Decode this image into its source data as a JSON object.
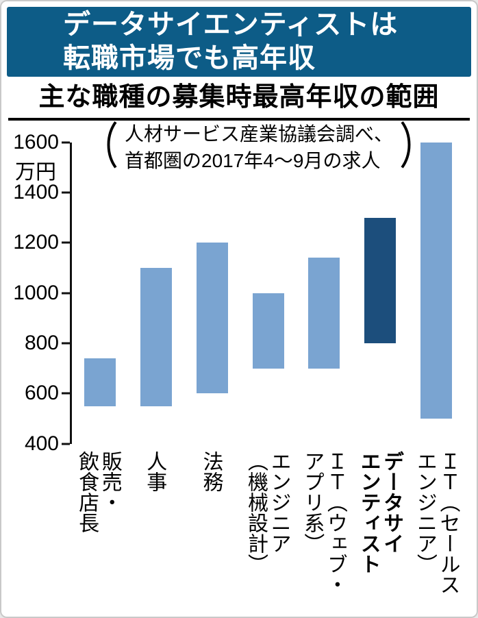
{
  "page": {
    "banner": {
      "line1": "データサイエンティストは",
      "line2": "転職市場でも高年収"
    },
    "subtitle": "主な職種の募集時最高年収の範囲"
  },
  "chart_data": {
    "type": "bar",
    "subtype": "floating-range-bars",
    "title": "主な職種の募集時最高年収の範囲",
    "note_line1": "人材サービス産業協議会調べ、",
    "note_line2": "首都圏の2017年4～9月の求人",
    "paren_open": "（",
    "paren_close": "）",
    "unit": "万円",
    "ylabel": "万円",
    "ylim": [
      400,
      1600
    ],
    "yticks": [
      1600,
      1400,
      1200,
      1000,
      800,
      600,
      400
    ],
    "grid": false,
    "legend": "none",
    "bars": [
      {
        "label": "販売・飲食店長",
        "label_lines": [
          "販売・",
          "飲食店長"
        ],
        "min": 550,
        "max": 740,
        "highlight": false
      },
      {
        "label": "人事",
        "label_lines": [
          "人事"
        ],
        "min": 550,
        "max": 1100,
        "highlight": false
      },
      {
        "label": "法務",
        "label_lines": [
          "法務"
        ],
        "min": 600,
        "max": 1200,
        "highlight": false
      },
      {
        "label": "エンジニア（機械設計）",
        "label_lines": [
          "エンジニア",
          "（機械設計）"
        ],
        "min": 700,
        "max": 1000,
        "highlight": false
      },
      {
        "label": "ＩＴ（ウェブ・アプリ系）",
        "label_lines": [
          "ＩＴ（ウェブ・",
          "アプリ系）"
        ],
        "min": 700,
        "max": 1140,
        "highlight": false
      },
      {
        "label": "データサイエンティスト",
        "label_lines": [
          "データサイ",
          "エンティスト"
        ],
        "min": 800,
        "max": 1300,
        "highlight": true
      },
      {
        "label": "ＩＴ（セールスエンジニア）",
        "label_lines": [
          "ＩＴ（セールス",
          "エンジニア）"
        ],
        "min": 500,
        "max": 1600,
        "highlight": false
      }
    ],
    "colors": {
      "bar": "#7aa4d1",
      "bar_highlight": "#1c4e7c",
      "banner_bg": "#0d5c87",
      "banner_text": "#ffffff",
      "axis": "#111111"
    }
  }
}
